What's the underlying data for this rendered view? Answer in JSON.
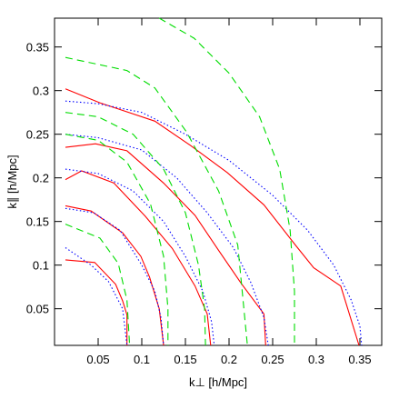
{
  "chart_data": {
    "type": "line",
    "xlabel": "k⊥ [h/Mpc]",
    "ylabel": "k∥ [h/Mpc]",
    "xlim": [
      0,
      0.375
    ],
    "ylim": [
      0.008,
      0.383
    ],
    "xticks": [
      0.05,
      0.1,
      0.15,
      0.2,
      0.25,
      0.3,
      0.35
    ],
    "yticks": [
      0.05,
      0.1,
      0.15,
      0.2,
      0.25,
      0.3,
      0.35
    ],
    "series": [
      {
        "color": "#ff0000",
        "dash": "solid",
        "x": [
          0.0125,
          0.046,
          0.07,
          0.078,
          0.083,
          0.083
        ],
        "y": [
          0.106,
          0.103,
          0.078,
          0.059,
          0.043,
          0.008
        ]
      },
      {
        "color": "#ff0000",
        "dash": "solid",
        "x": [
          0.0125,
          0.042,
          0.078,
          0.099,
          0.109,
          0.12,
          0.125
        ],
        "y": [
          0.168,
          0.162,
          0.137,
          0.11,
          0.086,
          0.05,
          0.008
        ]
      },
      {
        "color": "#ff0000",
        "dash": "solid",
        "x": [
          0.0125,
          0.031,
          0.068,
          0.104,
          0.135,
          0.161,
          0.175,
          0.179
        ],
        "y": [
          0.198,
          0.208,
          0.194,
          0.156,
          0.119,
          0.076,
          0.044,
          0.008
        ]
      },
      {
        "color": "#ff0000",
        "dash": "solid",
        "x": [
          0.0125,
          0.047,
          0.083,
          0.125,
          0.161,
          0.188,
          0.214,
          0.24,
          0.242
        ],
        "y": [
          0.235,
          0.239,
          0.231,
          0.194,
          0.157,
          0.117,
          0.079,
          0.044,
          0.008
        ]
      },
      {
        "color": "#ff0000",
        "dash": "solid",
        "x": [
          0.0125,
          0.052,
          0.115,
          0.156,
          0.198,
          0.24,
          0.276,
          0.297,
          0.328,
          0.349
        ],
        "y": [
          0.302,
          0.286,
          0.265,
          0.237,
          0.206,
          0.169,
          0.123,
          0.097,
          0.076,
          0.008
        ]
      },
      {
        "color": "#0000ff",
        "dash": "dotted",
        "x": [
          0.0125,
          0.042,
          0.062,
          0.078,
          0.083
        ],
        "y": [
          0.12,
          0.1,
          0.081,
          0.05,
          0.008
        ]
      },
      {
        "color": "#0000ff",
        "dash": "dotted",
        "x": [
          0.0125,
          0.045,
          0.075,
          0.1,
          0.115,
          0.122,
          0.125
        ],
        "y": [
          0.165,
          0.16,
          0.14,
          0.1,
          0.07,
          0.04,
          0.008
        ]
      },
      {
        "color": "#0000ff",
        "dash": "dotted",
        "x": [
          0.0125,
          0.05,
          0.09,
          0.125,
          0.15,
          0.17,
          0.18,
          0.183
        ],
        "y": [
          0.21,
          0.205,
          0.185,
          0.15,
          0.11,
          0.07,
          0.035,
          0.008
        ]
      },
      {
        "color": "#0000ff",
        "dash": "dotted",
        "x": [
          0.0125,
          0.05,
          0.1,
          0.14,
          0.175,
          0.205,
          0.225,
          0.24,
          0.245
        ],
        "y": [
          0.25,
          0.246,
          0.232,
          0.2,
          0.16,
          0.12,
          0.08,
          0.04,
          0.008
        ]
      },
      {
        "color": "#0000ff",
        "dash": "dotted",
        "x": [
          0.0125,
          0.05,
          0.1,
          0.15,
          0.2,
          0.25,
          0.29,
          0.32,
          0.34,
          0.35,
          0.352
        ],
        "y": [
          0.288,
          0.285,
          0.275,
          0.25,
          0.22,
          0.18,
          0.14,
          0.1,
          0.06,
          0.03,
          0.008
        ]
      },
      {
        "color": "#00dd00",
        "dash": "dashed",
        "x": [
          0.0125,
          0.052,
          0.073,
          0.083,
          0.086
        ],
        "y": [
          0.147,
          0.131,
          0.102,
          0.06,
          0.008
        ]
      },
      {
        "color": "#00dd00",
        "dash": "dashed",
        "x": [
          0.0125,
          0.05,
          0.083,
          0.11,
          0.125,
          0.13,
          0.13
        ],
        "y": [
          0.25,
          0.243,
          0.218,
          0.17,
          0.11,
          0.05,
          0.008
        ]
      },
      {
        "color": "#00dd00",
        "dash": "dashed",
        "x": [
          0.0125,
          0.05,
          0.09,
          0.125,
          0.15,
          0.165,
          0.172,
          0.173
        ],
        "y": [
          0.275,
          0.27,
          0.25,
          0.21,
          0.16,
          0.1,
          0.05,
          0.008
        ]
      },
      {
        "color": "#00dd00",
        "dash": "dashed",
        "x": [
          0.0125,
          0.083,
          0.115,
          0.151,
          0.188,
          0.21,
          0.221
        ],
        "y": [
          0.338,
          0.323,
          0.303,
          0.253,
          0.185,
          0.123,
          0.008
        ]
      },
      {
        "color": "#00dd00",
        "dash": "dashed",
        "x": [
          0.12,
          0.16,
          0.2,
          0.235,
          0.258,
          0.27,
          0.275,
          0.275
        ],
        "y": [
          0.383,
          0.36,
          0.32,
          0.27,
          0.21,
          0.14,
          0.07,
          0.008
        ]
      }
    ]
  }
}
